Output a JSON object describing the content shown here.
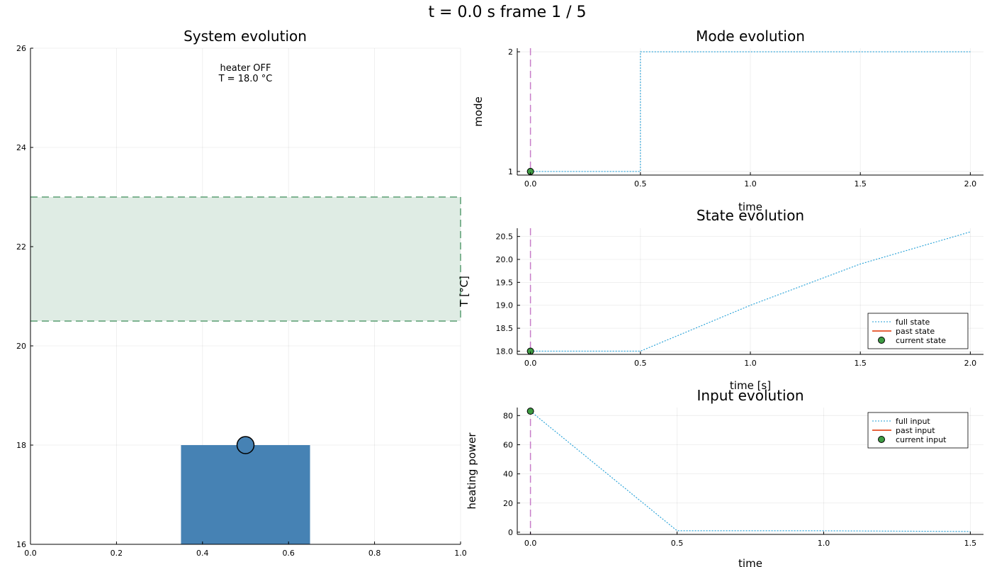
{
  "suptitle": "t = 0.0 s   frame 1 / 5",
  "colors": {
    "full": "#1f9ed6",
    "past": "#e8643f",
    "current": "#3d9b42",
    "marker": "#c77cc9",
    "bar": "#4682b4",
    "band_fill": "#dfece4",
    "band_line": "#5a9e72"
  },
  "chart_data": [
    {
      "id": "system",
      "type": "bar",
      "title": "System evolution",
      "xlabel": "",
      "ylabel": "",
      "xlim": [
        0,
        1
      ],
      "ylim": [
        16,
        26
      ],
      "xticks": [
        0,
        0.2,
        0.4,
        0.6,
        0.8,
        1
      ],
      "xtick_labels": [
        "0.0",
        "0.2",
        "0.4",
        "0.6",
        "0.8",
        "1.0"
      ],
      "yticks": [
        16,
        18,
        20,
        22,
        24,
        26
      ],
      "ytick_labels": [
        "16",
        "18",
        "20",
        "22",
        "24",
        "26"
      ],
      "grid": true,
      "bar": {
        "x0": 0.35,
        "x1": 0.65,
        "value": 18.0
      },
      "point": {
        "x": 0.5,
        "y": 18.0
      },
      "band": {
        "low": 20.5,
        "high": 23.0
      },
      "annotation": {
        "x": 0.5,
        "y": 25.6,
        "lines": [
          "heater OFF",
          "T = 18.0 °C"
        ]
      }
    },
    {
      "id": "mode",
      "type": "line",
      "title": "Mode evolution",
      "xlabel": "time",
      "ylabel": "mode",
      "xlim": [
        -0.06,
        2.06
      ],
      "ylim": [
        0.97,
        2.03
      ],
      "xticks": [
        0,
        0.5,
        1,
        1.5,
        2
      ],
      "xtick_labels": [
        "0.0",
        "0.5",
        "1.0",
        "1.5",
        "2.0"
      ],
      "yticks": [
        1,
        2
      ],
      "ytick_labels": [
        "1",
        "2"
      ],
      "grid": true,
      "step": true,
      "series": [
        {
          "role": "full",
          "x": [
            0,
            0.5,
            2.0
          ],
          "y": [
            1,
            2,
            2
          ]
        }
      ],
      "current": {
        "x": 0,
        "y": 1
      },
      "vline": 0,
      "legend": null
    },
    {
      "id": "state",
      "type": "line",
      "title": "State evolution",
      "xlabel": "time [s]",
      "ylabel": "T [°C]",
      "xlim": [
        -0.06,
        2.06
      ],
      "ylim": [
        17.93,
        20.68
      ],
      "xticks": [
        0,
        0.5,
        1,
        1.5,
        2
      ],
      "xtick_labels": [
        "0.0",
        "0.5",
        "1.0",
        "1.5",
        "2.0"
      ],
      "yticks": [
        18,
        18.5,
        19,
        19.5,
        20,
        20.5
      ],
      "ytick_labels": [
        "18.0",
        "18.5",
        "19.0",
        "19.5",
        "20.0",
        "20.5"
      ],
      "grid": true,
      "step": false,
      "series": [
        {
          "role": "full",
          "x": [
            0,
            0.5,
            1.0,
            1.5,
            2.0
          ],
          "y": [
            18.0,
            18.0,
            19.0,
            19.9,
            20.6
          ]
        }
      ],
      "current": {
        "x": 0,
        "y": 18.0
      },
      "vline": 0,
      "legend": {
        "position": "bottom-right",
        "entries": [
          {
            "role": "full",
            "label": "full state"
          },
          {
            "role": "past",
            "label": "past state"
          },
          {
            "role": "current",
            "label": "current state"
          }
        ]
      }
    },
    {
      "id": "input",
      "type": "line",
      "title": "Input evolution",
      "xlabel": "time",
      "ylabel": "heating power",
      "xlim": [
        -0.045,
        1.545
      ],
      "ylim": [
        -1.5,
        85.5
      ],
      "xticks": [
        0,
        0.5,
        1,
        1.5
      ],
      "xtick_labels": [
        "0.0",
        "0.5",
        "1.0",
        "1.5"
      ],
      "yticks": [
        0,
        20,
        40,
        60,
        80
      ],
      "ytick_labels": [
        "0",
        "20",
        "40",
        "60",
        "80"
      ],
      "grid": true,
      "step": false,
      "series": [
        {
          "role": "full",
          "x": [
            0,
            0.5,
            1.0,
            1.5
          ],
          "y": [
            83,
            1,
            1,
            0.5
          ]
        }
      ],
      "current": {
        "x": 0,
        "y": 83
      },
      "vline": 0,
      "legend": {
        "position": "top-right",
        "entries": [
          {
            "role": "full",
            "label": "full input"
          },
          {
            "role": "past",
            "label": "past input"
          },
          {
            "role": "current",
            "label": "current input"
          }
        ]
      }
    }
  ]
}
